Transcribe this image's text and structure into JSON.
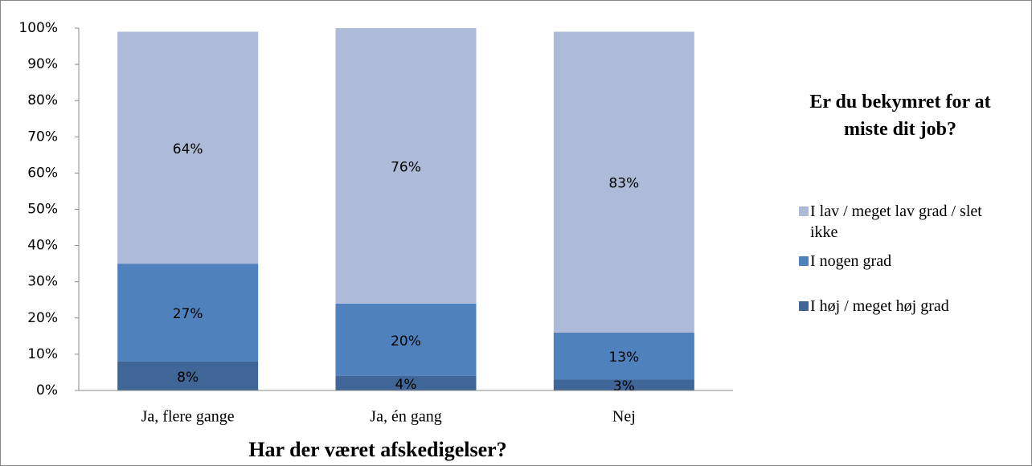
{
  "chart_data": {
    "type": "stacked_bar",
    "xlabel": "Har der været afskedigelser?",
    "legend_title": "Er du bekymret for at miste dit job?",
    "legend": "right",
    "categories": [
      "Ja, flere gange",
      "Ja, én gang",
      "Nej"
    ],
    "series": [
      {
        "name": "I høj / meget høj grad",
        "color": "#3f6696",
        "values": [
          8,
          4,
          3
        ],
        "value_labels": [
          "8%",
          "4%",
          "3%"
        ]
      },
      {
        "name": "I nogen grad",
        "color": "#4f81bd",
        "values": [
          27,
          20,
          13
        ],
        "value_labels": [
          "27%",
          "20%",
          "13%"
        ]
      },
      {
        "name": "I lav / meget lav grad / slet ikke",
        "color": "#adbbd9",
        "values": [
          64,
          76,
          83
        ],
        "value_labels": [
          "64%",
          "76%",
          "83%"
        ]
      }
    ],
    "ylim": [
      0,
      100
    ],
    "yticks": [
      {
        "value": 0,
        "label": "0%"
      },
      {
        "value": 10,
        "label": "10%"
      },
      {
        "value": 20,
        "label": "20%"
      },
      {
        "value": 30,
        "label": "30%"
      },
      {
        "value": 40,
        "label": "40%"
      },
      {
        "value": 50,
        "label": "50%"
      },
      {
        "value": 60,
        "label": "60%"
      },
      {
        "value": 70,
        "label": "70%"
      },
      {
        "value": 80,
        "label": "80%"
      },
      {
        "value": 90,
        "label": "90%"
      },
      {
        "value": 100,
        "label": "100%"
      }
    ]
  }
}
